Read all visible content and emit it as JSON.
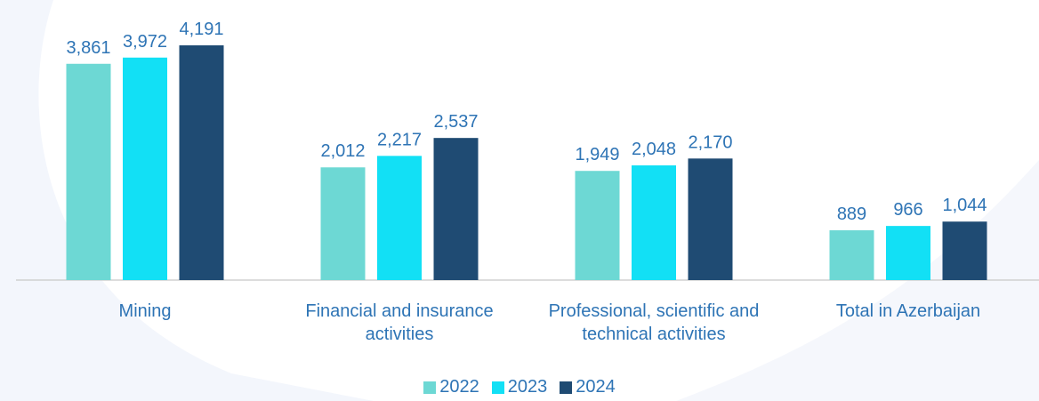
{
  "chart_data": {
    "type": "bar",
    "categories": [
      "Mining",
      "Financial and insurance activities",
      "Professional, scientific and technical activities",
      "Total in Azerbaijan"
    ],
    "series": [
      {
        "name": "2022",
        "color": "#6dd8d4",
        "values": [
          3861,
          2012,
          1949,
          889
        ],
        "value_labels": [
          "3,861",
          "2,012",
          "1,949",
          "889"
        ]
      },
      {
        "name": "2023",
        "color": "#12e0f5",
        "values": [
          3972,
          2217,
          2048,
          966
        ],
        "value_labels": [
          "3,972",
          "2,217",
          "2,048",
          "966"
        ]
      },
      {
        "name": "2024",
        "color": "#1f4b73",
        "values": [
          4191,
          2537,
          2170,
          1044
        ],
        "value_labels": [
          "4,191",
          "2,537",
          "2,170",
          "1,044"
        ]
      }
    ],
    "ylim": [
      0,
      5000
    ],
    "legend": "bottom"
  }
}
